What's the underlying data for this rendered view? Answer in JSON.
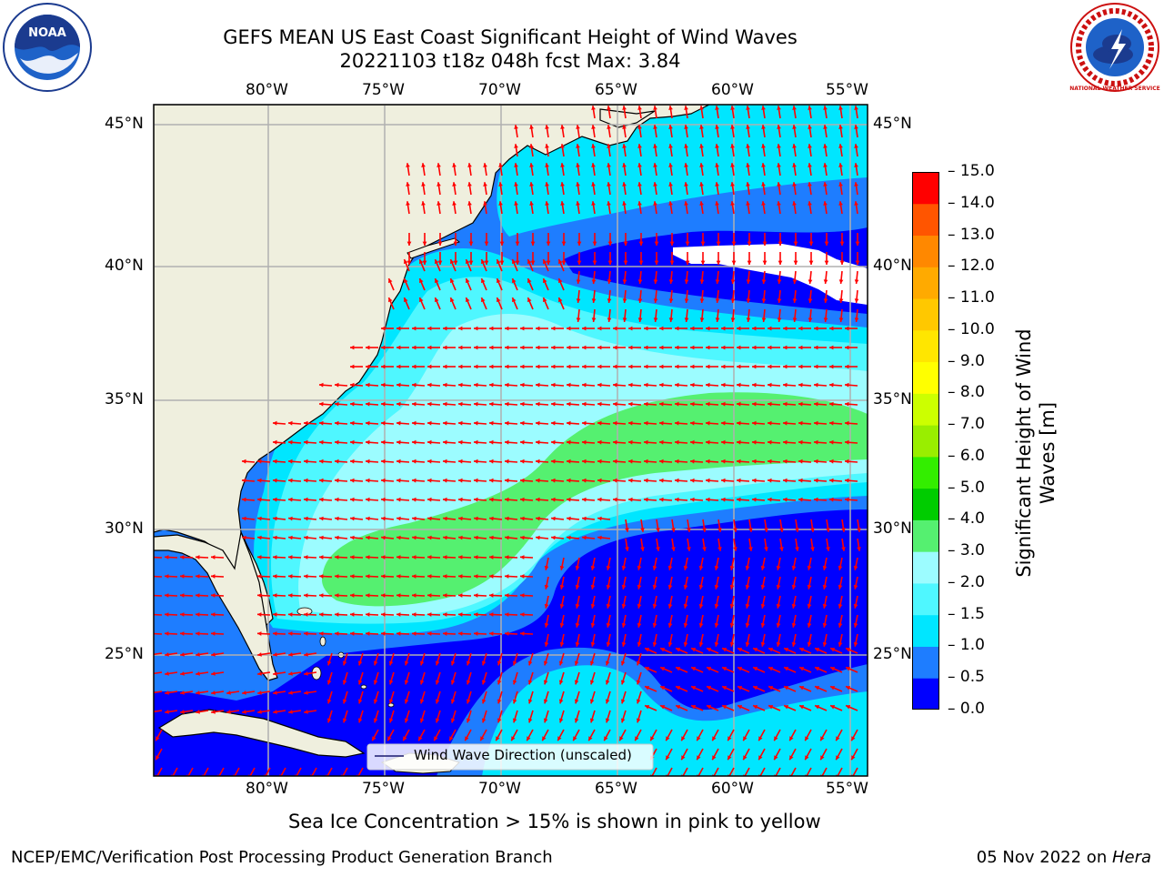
{
  "header": {
    "title_line1": "GEFS MEAN US East Coast Significant Height of Wind Waves",
    "title_line2": "20221103 t18z 048h fcst   Max: 3.84"
  },
  "logos": {
    "left": {
      "text": "NOAA",
      "icon": "noaa-logo"
    },
    "right": {
      "text": "NATIONAL WEATHER SERVICE",
      "icon": "nws-logo"
    }
  },
  "map": {
    "lon_labels": [
      "80°W",
      "75°W",
      "70°W",
      "65°W",
      "60°W",
      "55°W"
    ],
    "lat_labels": [
      "45°N",
      "40°N",
      "35°N",
      "30°N",
      "25°N"
    ],
    "legend_label": "Wind Wave Direction (unscaled)",
    "colors": {
      "land": "#efefde",
      "grid": "#b0b0b0",
      "arrow": "#ff0000"
    }
  },
  "colorbar": {
    "title": "Significant Height of Wind Waves [m]",
    "title_line1": "Significant Height of Wind",
    "title_line2": "Waves [m]",
    "levels": [
      "0.0",
      "0.5",
      "1.0",
      "1.5",
      "2.0",
      "3.0",
      "4.0",
      "5.0",
      "6.0",
      "7.0",
      "8.0",
      "9.0",
      "10.0",
      "11.0",
      "12.0",
      "13.0",
      "14.0",
      "15.0"
    ],
    "colors": [
      "#0000ff",
      "#1e7dff",
      "#00e6ff",
      "#4ff7ff",
      "#9cfcff",
      "#55f070",
      "#00cc00",
      "#33ee00",
      "#99ee00",
      "#ccff00",
      "#ffff00",
      "#ffe600",
      "#ffc800",
      "#ffaa00",
      "#ff8800",
      "#ff5500",
      "#ff0000"
    ]
  },
  "notes": {
    "sea_ice": "Sea Ice Concentration > 15% is shown in pink to yellow"
  },
  "footer": {
    "left": "NCEP/EMC/Verification Post Processing Product Generation Branch",
    "right_prefix": "05 Nov 2022 on ",
    "right_machine": "Hera"
  }
}
